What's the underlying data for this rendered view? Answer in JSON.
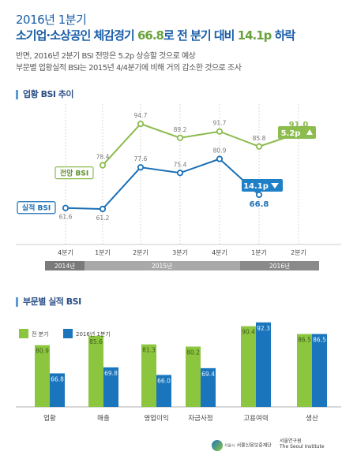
{
  "header": {
    "title_line1": "2016년 1분기",
    "title_line2_pre": "소기업·소상공인 체감경기 ",
    "title_line2_num": "66.8",
    "title_line2_mid": "로 전 분기 대비 ",
    "title_line2_num2": "14.1p",
    "title_line2_post": " 하락",
    "subtitle1": "반면, 2016년 2분기 BSI 전망은 5.2p 상승할 것으로 예상",
    "subtitle2": "부문별 업황실적 BSI는 2015년 4/4분기에 비해 거의 감소한 것으로 조사"
  },
  "colors": {
    "outlook": "#8cbb4e",
    "actual": "#1a6fb5",
    "bar_green": "#8cc63f",
    "bar_blue": "#1a75bc",
    "title_blue": "#1a5ea8"
  },
  "chart_data": [
    {
      "type": "line",
      "title": "업황 BSI 추이",
      "categories": [
        "4분기",
        "1분기",
        "2분기",
        "3분기",
        "4분기",
        "1분기",
        "2분기"
      ],
      "year_groups": [
        {
          "label": "2014년",
          "span": 1
        },
        {
          "label": "2015년",
          "span": 4
        },
        {
          "label": "2016년",
          "span": 2
        }
      ],
      "series": [
        {
          "name": "전망 BSI",
          "values": [
            null,
            78.4,
            94.7,
            89.2,
            91.7,
            85.8,
            91.0
          ],
          "labels": [
            "",
            "78.4",
            "94.7",
            "89.2",
            "91.7",
            "85.8",
            "91.0"
          ]
        },
        {
          "name": "실적 BSI",
          "values": [
            61.6,
            61.2,
            77.6,
            75.4,
            80.9,
            66.8,
            null
          ],
          "labels": [
            "61.6",
            "61.2",
            "77.6",
            "75.4",
            "80.9",
            "66.8",
            ""
          ]
        }
      ],
      "annotations": [
        {
          "text": "5.2p",
          "direction": "up",
          "series": "전망 BSI"
        },
        {
          "text": "14.1p",
          "direction": "down",
          "series": "실적 BSI"
        }
      ],
      "ylim": [
        55,
        100
      ]
    },
    {
      "type": "bar",
      "title": "부문별 실적 BSI",
      "categories": [
        "업황",
        "매출",
        "영업이익",
        "자금사정",
        "고용여력",
        "생산"
      ],
      "series": [
        {
          "name": "전 분기",
          "values": [
            80.9,
            85.6,
            81.3,
            80.2,
            90.4,
            86.5
          ]
        },
        {
          "name": "2016년 1분기",
          "values": [
            66.8,
            69.8,
            66.0,
            69.4,
            92.3,
            86.5
          ]
        }
      ],
      "legend": "top-left",
      "ylim": [
        50,
        95
      ]
    }
  ],
  "footer": {
    "logo1_sub": "서울시",
    "logo1_name": "서울신용보증재단",
    "logo2_kr": "서울연구원",
    "logo2_en": "The Seoul Institute"
  }
}
